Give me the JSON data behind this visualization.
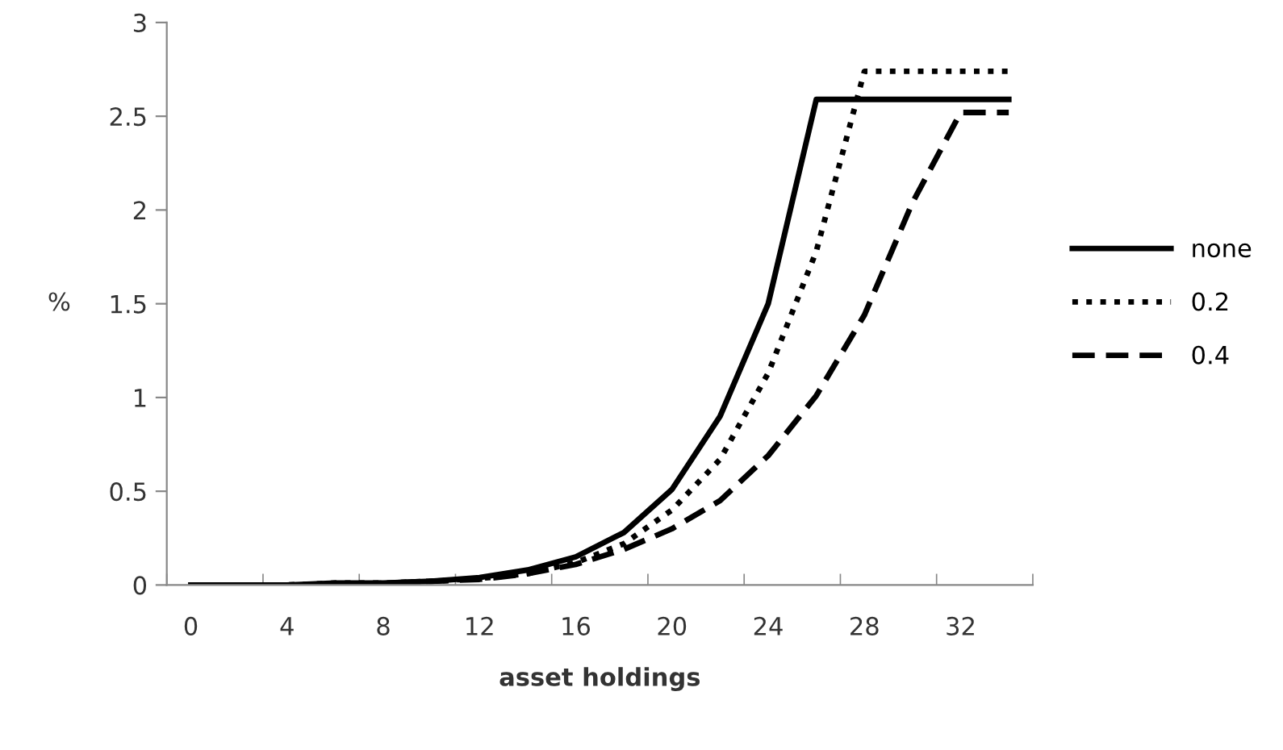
{
  "chart_data": {
    "type": "line",
    "xlabel": "asset holdings",
    "ylabel": "%",
    "categories": [
      "0",
      null,
      "4",
      null,
      "8",
      null,
      "12",
      null,
      "16",
      null,
      "20",
      null,
      "24",
      null,
      "28",
      null,
      "32",
      null
    ],
    "series": [
      {
        "name": "none",
        "color": "#000000",
        "line_style": "solid",
        "values": [
          0,
          0,
          0,
          0.01,
          0.01,
          0.02,
          0.04,
          0.08,
          0.15,
          0.28,
          0.51,
          0.9,
          1.5,
          2.59,
          2.59,
          2.59,
          2.59,
          2.59
        ]
      },
      {
        "name": "0.2",
        "color": "#000000",
        "line_style": "dotted",
        "values": [
          0,
          0,
          0,
          0.01,
          0.01,
          0.02,
          0.035,
          0.06,
          0.12,
          0.22,
          0.4,
          0.67,
          1.13,
          1.78,
          2.74,
          2.74,
          2.74,
          2.74
        ]
      },
      {
        "name": "0.4",
        "color": "#000000",
        "line_style": "dashed",
        "values": [
          0,
          0,
          0,
          0,
          0.01,
          0.02,
          0.03,
          0.06,
          0.11,
          0.19,
          0.3,
          0.45,
          0.69,
          1.01,
          1.44,
          2.04,
          2.52,
          2.52
        ]
      }
    ],
    "ylim": [
      0,
      3
    ],
    "yticks": [
      0,
      0.5,
      1,
      1.5,
      2,
      2.5,
      3
    ],
    "grid": false,
    "legend": "right",
    "marker": "none"
  }
}
